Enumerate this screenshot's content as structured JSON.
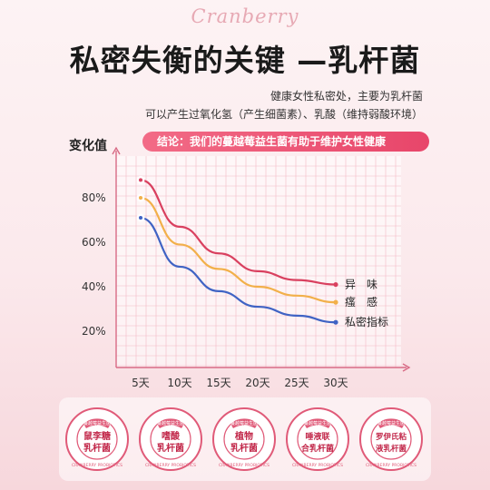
{
  "brand": "Cranberry",
  "title": "私密失衡的关键 —乳杆菌",
  "subtitle_line1": "健康女性私密处，主要为乳杆菌",
  "subtitle_line2": "可以产生过氧化氢（产生细菌素）、乳酸（维持弱酸环境）",
  "conclusion": "结论：我们的蔓越莓益生菌有助于维护女性健康",
  "colors": {
    "odor": "#d9405f",
    "itch": "#f2b04a",
    "index": "#3f63c4",
    "accent": "#e8466a",
    "grid": "#f3b9c5"
  },
  "chart_data": {
    "type": "line",
    "ylabel": "变化值",
    "xlabel": "",
    "x": [
      "5天",
      "10天",
      "15天",
      "20天",
      "25天",
      "30天"
    ],
    "y_ticks": [
      "80%",
      "60%",
      "40%",
      "20%"
    ],
    "ylim": [
      0,
      100
    ],
    "grid": true,
    "legend": "right",
    "series": [
      {
        "name": "异　味",
        "color_key": "odor",
        "values": [
          88,
          67,
          55,
          47,
          43,
          41
        ]
      },
      {
        "name": "瘙　感",
        "color_key": "itch",
        "values": [
          80,
          59,
          48,
          40,
          36,
          33
        ]
      },
      {
        "name": "私密指标",
        "color_key": "index",
        "values": [
          71,
          49,
          38,
          31,
          27,
          24
        ]
      }
    ]
  },
  "stamps": [
    {
      "line1": "鼠李糖",
      "line2": "乳杆菌"
    },
    {
      "line1": "嗜酸",
      "line2": "乳杆菌"
    },
    {
      "line1": "植物",
      "line2": "乳杆菌"
    },
    {
      "line1": "唾液联",
      "line2": "合乳杆菌"
    },
    {
      "line1": "罗伊氏粘",
      "line2": "液乳杆菌"
    }
  ],
  "stamp_tag": "蔓越莓益生菌",
  "stamp_ring": "CRANBERRY PROBIOTICS"
}
